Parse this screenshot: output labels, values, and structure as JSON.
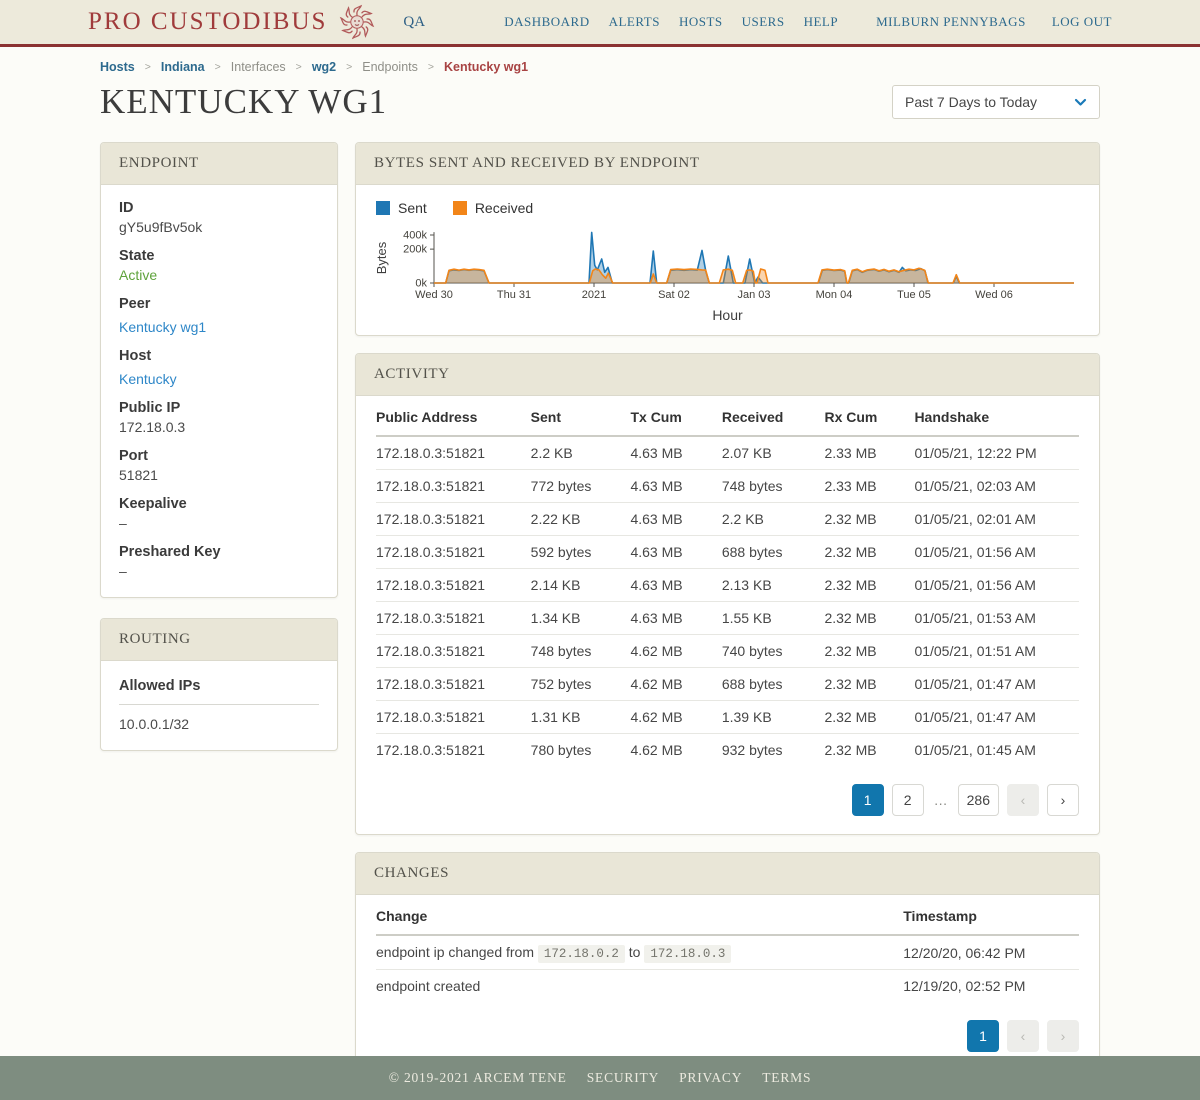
{
  "brand": {
    "name": "Pro Custodibus",
    "qa_label": "QA"
  },
  "nav": {
    "items": [
      "Dashboard",
      "Alerts",
      "Hosts",
      "Users",
      "Help"
    ],
    "user": "Milburn Pennybags",
    "logout": "Log Out"
  },
  "breadcrumb": [
    {
      "label": "Hosts",
      "type": "link"
    },
    {
      "label": "Indiana",
      "type": "link"
    },
    {
      "label": "Interfaces",
      "type": "muted"
    },
    {
      "label": "wg2",
      "type": "link"
    },
    {
      "label": "Endpoints",
      "type": "muted"
    },
    {
      "label": "Kentucky wg1",
      "type": "current"
    }
  ],
  "page": {
    "title": "Kentucky wg1",
    "range_value": "Past 7 Days to Today"
  },
  "endpoint_panel": {
    "title": "Endpoint",
    "fields": [
      {
        "label": "ID",
        "value": "gY5u9fBv5ok",
        "type": "text"
      },
      {
        "label": "State",
        "value": "Active",
        "type": "status"
      },
      {
        "label": "Peer",
        "value": "Kentucky wg1",
        "type": "link"
      },
      {
        "label": "Host",
        "value": "Kentucky",
        "type": "link"
      },
      {
        "label": "Public IP",
        "value": "172.18.0.3",
        "type": "text"
      },
      {
        "label": "Port",
        "value": "51821",
        "type": "text"
      },
      {
        "label": "Keepalive",
        "value": "–",
        "type": "text"
      },
      {
        "label": "Preshared Key",
        "value": "–",
        "type": "text"
      }
    ]
  },
  "routing_panel": {
    "title": "Routing",
    "column": "Allowed IPs",
    "rows": [
      "10.0.0.1/32"
    ]
  },
  "chart_panel": {
    "title": "Bytes Sent and Received by Endpoint"
  },
  "chart_data": {
    "type": "area",
    "title": "Bytes Sent and Received by Endpoint",
    "xlabel": "Hour",
    "ylabel": "Bytes",
    "x_unit": "hours since Wed Dec 30 00:00",
    "value_unit": "kilobytes",
    "x_domain": [
      0,
      192
    ],
    "y_domain": [
      0,
      450
    ],
    "y_scale": "sqrt",
    "grid": false,
    "legend_position": "top-left",
    "x_ticks": [
      {
        "h": 0,
        "label": "Wed 30"
      },
      {
        "h": 24,
        "label": "Thu 31"
      },
      {
        "h": 48,
        "label": "2021"
      },
      {
        "h": 72,
        "label": "Sat 02"
      },
      {
        "h": 96,
        "label": "Jan 03"
      },
      {
        "h": 120,
        "label": "Mon 04"
      },
      {
        "h": 144,
        "label": "Tue 05"
      },
      {
        "h": 168,
        "label": "Wed 06"
      }
    ],
    "y_ticks": [
      {
        "v": 0,
        "label": "0k"
      },
      {
        "v": 200,
        "label": "200k"
      },
      {
        "v": 400,
        "label": "400k"
      }
    ],
    "legend": [
      {
        "name": "Sent",
        "color": "#1f77b4"
      },
      {
        "name": "Received",
        "color": "#f28518"
      }
    ],
    "series": [
      {
        "name": "Sent",
        "color": "#1f77b4",
        "points": [
          [
            0,
            0
          ],
          [
            3.5,
            0
          ],
          [
            4.5,
            26
          ],
          [
            6,
            30
          ],
          [
            7.5,
            27
          ],
          [
            9,
            31
          ],
          [
            10.5,
            28
          ],
          [
            12,
            31
          ],
          [
            13.5,
            29
          ],
          [
            15,
            26
          ],
          [
            16.5,
            0
          ],
          [
            46.5,
            0
          ],
          [
            47.3,
            445
          ],
          [
            48.2,
            55
          ],
          [
            49,
            30
          ],
          [
            50.3,
            100
          ],
          [
            51.2,
            20
          ],
          [
            52.2,
            42
          ],
          [
            53.5,
            0
          ],
          [
            64.8,
            0
          ],
          [
            65.8,
            178
          ],
          [
            66.8,
            0
          ],
          [
            69.8,
            0
          ],
          [
            71,
            28
          ],
          [
            73,
            31
          ],
          [
            75,
            28
          ],
          [
            77,
            31
          ],
          [
            79,
            29
          ],
          [
            80.4,
            185
          ],
          [
            81.5,
            26
          ],
          [
            82.6,
            0
          ],
          [
            86.8,
            0
          ],
          [
            88.3,
            127
          ],
          [
            89.8,
            0
          ],
          [
            93.3,
            0
          ],
          [
            94.7,
            100
          ],
          [
            96.2,
            0
          ],
          [
            97.2,
            6
          ],
          [
            98.6,
            0
          ],
          [
            115.3,
            0
          ],
          [
            116.5,
            28
          ],
          [
            118,
            31
          ],
          [
            120,
            27
          ],
          [
            122,
            29
          ],
          [
            123.2,
            24
          ],
          [
            123.8,
            0
          ],
          [
            124.4,
            0
          ],
          [
            125.5,
            26
          ],
          [
            127,
            31
          ],
          [
            128.5,
            20
          ],
          [
            130,
            28
          ],
          [
            132,
            32
          ],
          [
            133.5,
            24
          ],
          [
            135,
            30
          ],
          [
            136.5,
            22
          ],
          [
            138,
            28
          ],
          [
            139.5,
            20
          ],
          [
            140.5,
            42
          ],
          [
            141.5,
            26
          ],
          [
            143,
            30
          ],
          [
            144.5,
            27
          ],
          [
            146,
            36
          ],
          [
            147.3,
            26
          ],
          [
            148.2,
            0
          ],
          [
            155.8,
            0
          ],
          [
            156.7,
            8
          ],
          [
            157.6,
            0
          ],
          [
            192,
            0
          ]
        ]
      },
      {
        "name": "Received",
        "color": "#f28518",
        "points": [
          [
            0,
            0
          ],
          [
            3.5,
            0
          ],
          [
            4.5,
            28
          ],
          [
            6,
            33
          ],
          [
            7.5,
            29
          ],
          [
            9,
            33
          ],
          [
            10.5,
            30
          ],
          [
            12,
            33
          ],
          [
            13.5,
            31
          ],
          [
            15,
            28
          ],
          [
            16.5,
            0
          ],
          [
            46.6,
            0
          ],
          [
            47.6,
            26
          ],
          [
            48.4,
            34
          ],
          [
            49.5,
            30
          ],
          [
            50.5,
            12
          ],
          [
            51.5,
            4
          ],
          [
            52.3,
            17
          ],
          [
            53.6,
            0
          ],
          [
            64.9,
            0
          ],
          [
            65.8,
            14
          ],
          [
            66.8,
            0
          ],
          [
            69.8,
            0
          ],
          [
            71,
            31
          ],
          [
            73,
            34
          ],
          [
            75,
            31
          ],
          [
            77,
            34
          ],
          [
            79,
            32
          ],
          [
            80.4,
            30
          ],
          [
            81.5,
            29
          ],
          [
            82.6,
            0
          ],
          [
            85.6,
            0
          ],
          [
            86.8,
            30
          ],
          [
            88.3,
            33
          ],
          [
            89.5,
            28
          ],
          [
            90.5,
            0
          ],
          [
            92.6,
            0
          ],
          [
            93.8,
            28
          ],
          [
            94.8,
            30
          ],
          [
            95.8,
            24
          ],
          [
            96.4,
            0
          ],
          [
            96.9,
            0
          ],
          [
            98,
            34
          ],
          [
            99.3,
            28
          ],
          [
            100.2,
            0
          ],
          [
            115.2,
            0
          ],
          [
            116.4,
            30
          ],
          [
            118,
            33
          ],
          [
            120,
            29
          ],
          [
            122,
            31
          ],
          [
            123.2,
            26
          ],
          [
            123.9,
            0
          ],
          [
            124.3,
            0
          ],
          [
            125.5,
            28
          ],
          [
            127,
            33
          ],
          [
            128.5,
            22
          ],
          [
            130,
            30
          ],
          [
            132,
            34
          ],
          [
            133.5,
            26
          ],
          [
            135,
            32
          ],
          [
            136.5,
            24
          ],
          [
            138,
            30
          ],
          [
            139.5,
            22
          ],
          [
            141,
            28
          ],
          [
            142.5,
            33
          ],
          [
            144,
            30
          ],
          [
            145.5,
            38
          ],
          [
            147.2,
            28
          ],
          [
            148.3,
            0
          ],
          [
            155.7,
            0
          ],
          [
            156.7,
            12
          ],
          [
            157.7,
            0
          ],
          [
            192,
            0
          ]
        ]
      }
    ]
  },
  "activity_panel": {
    "title": "Activity",
    "columns": [
      "Public Address",
      "Sent",
      "Tx Cum",
      "Received",
      "Rx Cum",
      "Handshake"
    ],
    "rows": [
      [
        "172.18.0.3:51821",
        "2.2 KB",
        "4.63 MB",
        "2.07 KB",
        "2.33 MB",
        "01/05/21, 12:22 PM"
      ],
      [
        "172.18.0.3:51821",
        "772 bytes",
        "4.63 MB",
        "748 bytes",
        "2.33 MB",
        "01/05/21, 02:03 AM"
      ],
      [
        "172.18.0.3:51821",
        "2.22 KB",
        "4.63 MB",
        "2.2 KB",
        "2.32 MB",
        "01/05/21, 02:01 AM"
      ],
      [
        "172.18.0.3:51821",
        "592 bytes",
        "4.63 MB",
        "688 bytes",
        "2.32 MB",
        "01/05/21, 01:56 AM"
      ],
      [
        "172.18.0.3:51821",
        "2.14 KB",
        "4.63 MB",
        "2.13 KB",
        "2.32 MB",
        "01/05/21, 01:56 AM"
      ],
      [
        "172.18.0.3:51821",
        "1.34 KB",
        "4.63 MB",
        "1.55 KB",
        "2.32 MB",
        "01/05/21, 01:53 AM"
      ],
      [
        "172.18.0.3:51821",
        "748 bytes",
        "4.62 MB",
        "740 bytes",
        "2.32 MB",
        "01/05/21, 01:51 AM"
      ],
      [
        "172.18.0.3:51821",
        "752 bytes",
        "4.62 MB",
        "688 bytes",
        "2.32 MB",
        "01/05/21, 01:47 AM"
      ],
      [
        "172.18.0.3:51821",
        "1.31 KB",
        "4.62 MB",
        "1.39 KB",
        "2.32 MB",
        "01/05/21, 01:47 AM"
      ],
      [
        "172.18.0.3:51821",
        "780 bytes",
        "4.62 MB",
        "932 bytes",
        "2.32 MB",
        "01/05/21, 01:45 AM"
      ]
    ],
    "pagination": [
      {
        "kind": "page",
        "label": "1",
        "state": "active"
      },
      {
        "kind": "page",
        "label": "2",
        "state": "normal"
      },
      {
        "kind": "ellipsis",
        "label": "…"
      },
      {
        "kind": "page",
        "label": "286",
        "state": "normal"
      },
      {
        "kind": "prev",
        "state": "disabled"
      },
      {
        "kind": "next",
        "state": "normal"
      }
    ]
  },
  "changes_panel": {
    "title": "Changes",
    "columns": [
      "Change",
      "Timestamp"
    ],
    "rows": [
      {
        "parts": [
          {
            "t": "text",
            "v": "endpoint ip changed from"
          },
          {
            "t": "code",
            "v": "172.18.0.2"
          },
          {
            "t": "text",
            "v": "to"
          },
          {
            "t": "code",
            "v": "172.18.0.3"
          }
        ],
        "timestamp": "12/20/20, 06:42 PM"
      },
      {
        "parts": [
          {
            "t": "text",
            "v": "endpoint created"
          }
        ],
        "timestamp": "12/19/20, 02:52 PM"
      }
    ],
    "pagination": [
      {
        "kind": "page",
        "label": "1",
        "state": "active"
      },
      {
        "kind": "prev",
        "state": "disabled"
      },
      {
        "kind": "next",
        "state": "disabled"
      }
    ]
  },
  "footer": {
    "copyright": "© 2019-2021 Arcem Tene",
    "links": [
      "Security",
      "Privacy",
      "Terms"
    ]
  },
  "colors": {
    "header_bg": "#edeadb",
    "header_border": "#8b3232",
    "brand_red": "#a03b3b",
    "nav_blue": "#2d6a8e",
    "link_blue": "#2e87c8",
    "status_green": "#5fa33c",
    "active_page_blue": "#1176ad",
    "panel_header_bg": "#e9e6d7",
    "footer_bg": "#7e8d80",
    "sent_blue": "#1f77b4",
    "received_orange": "#f28518"
  }
}
